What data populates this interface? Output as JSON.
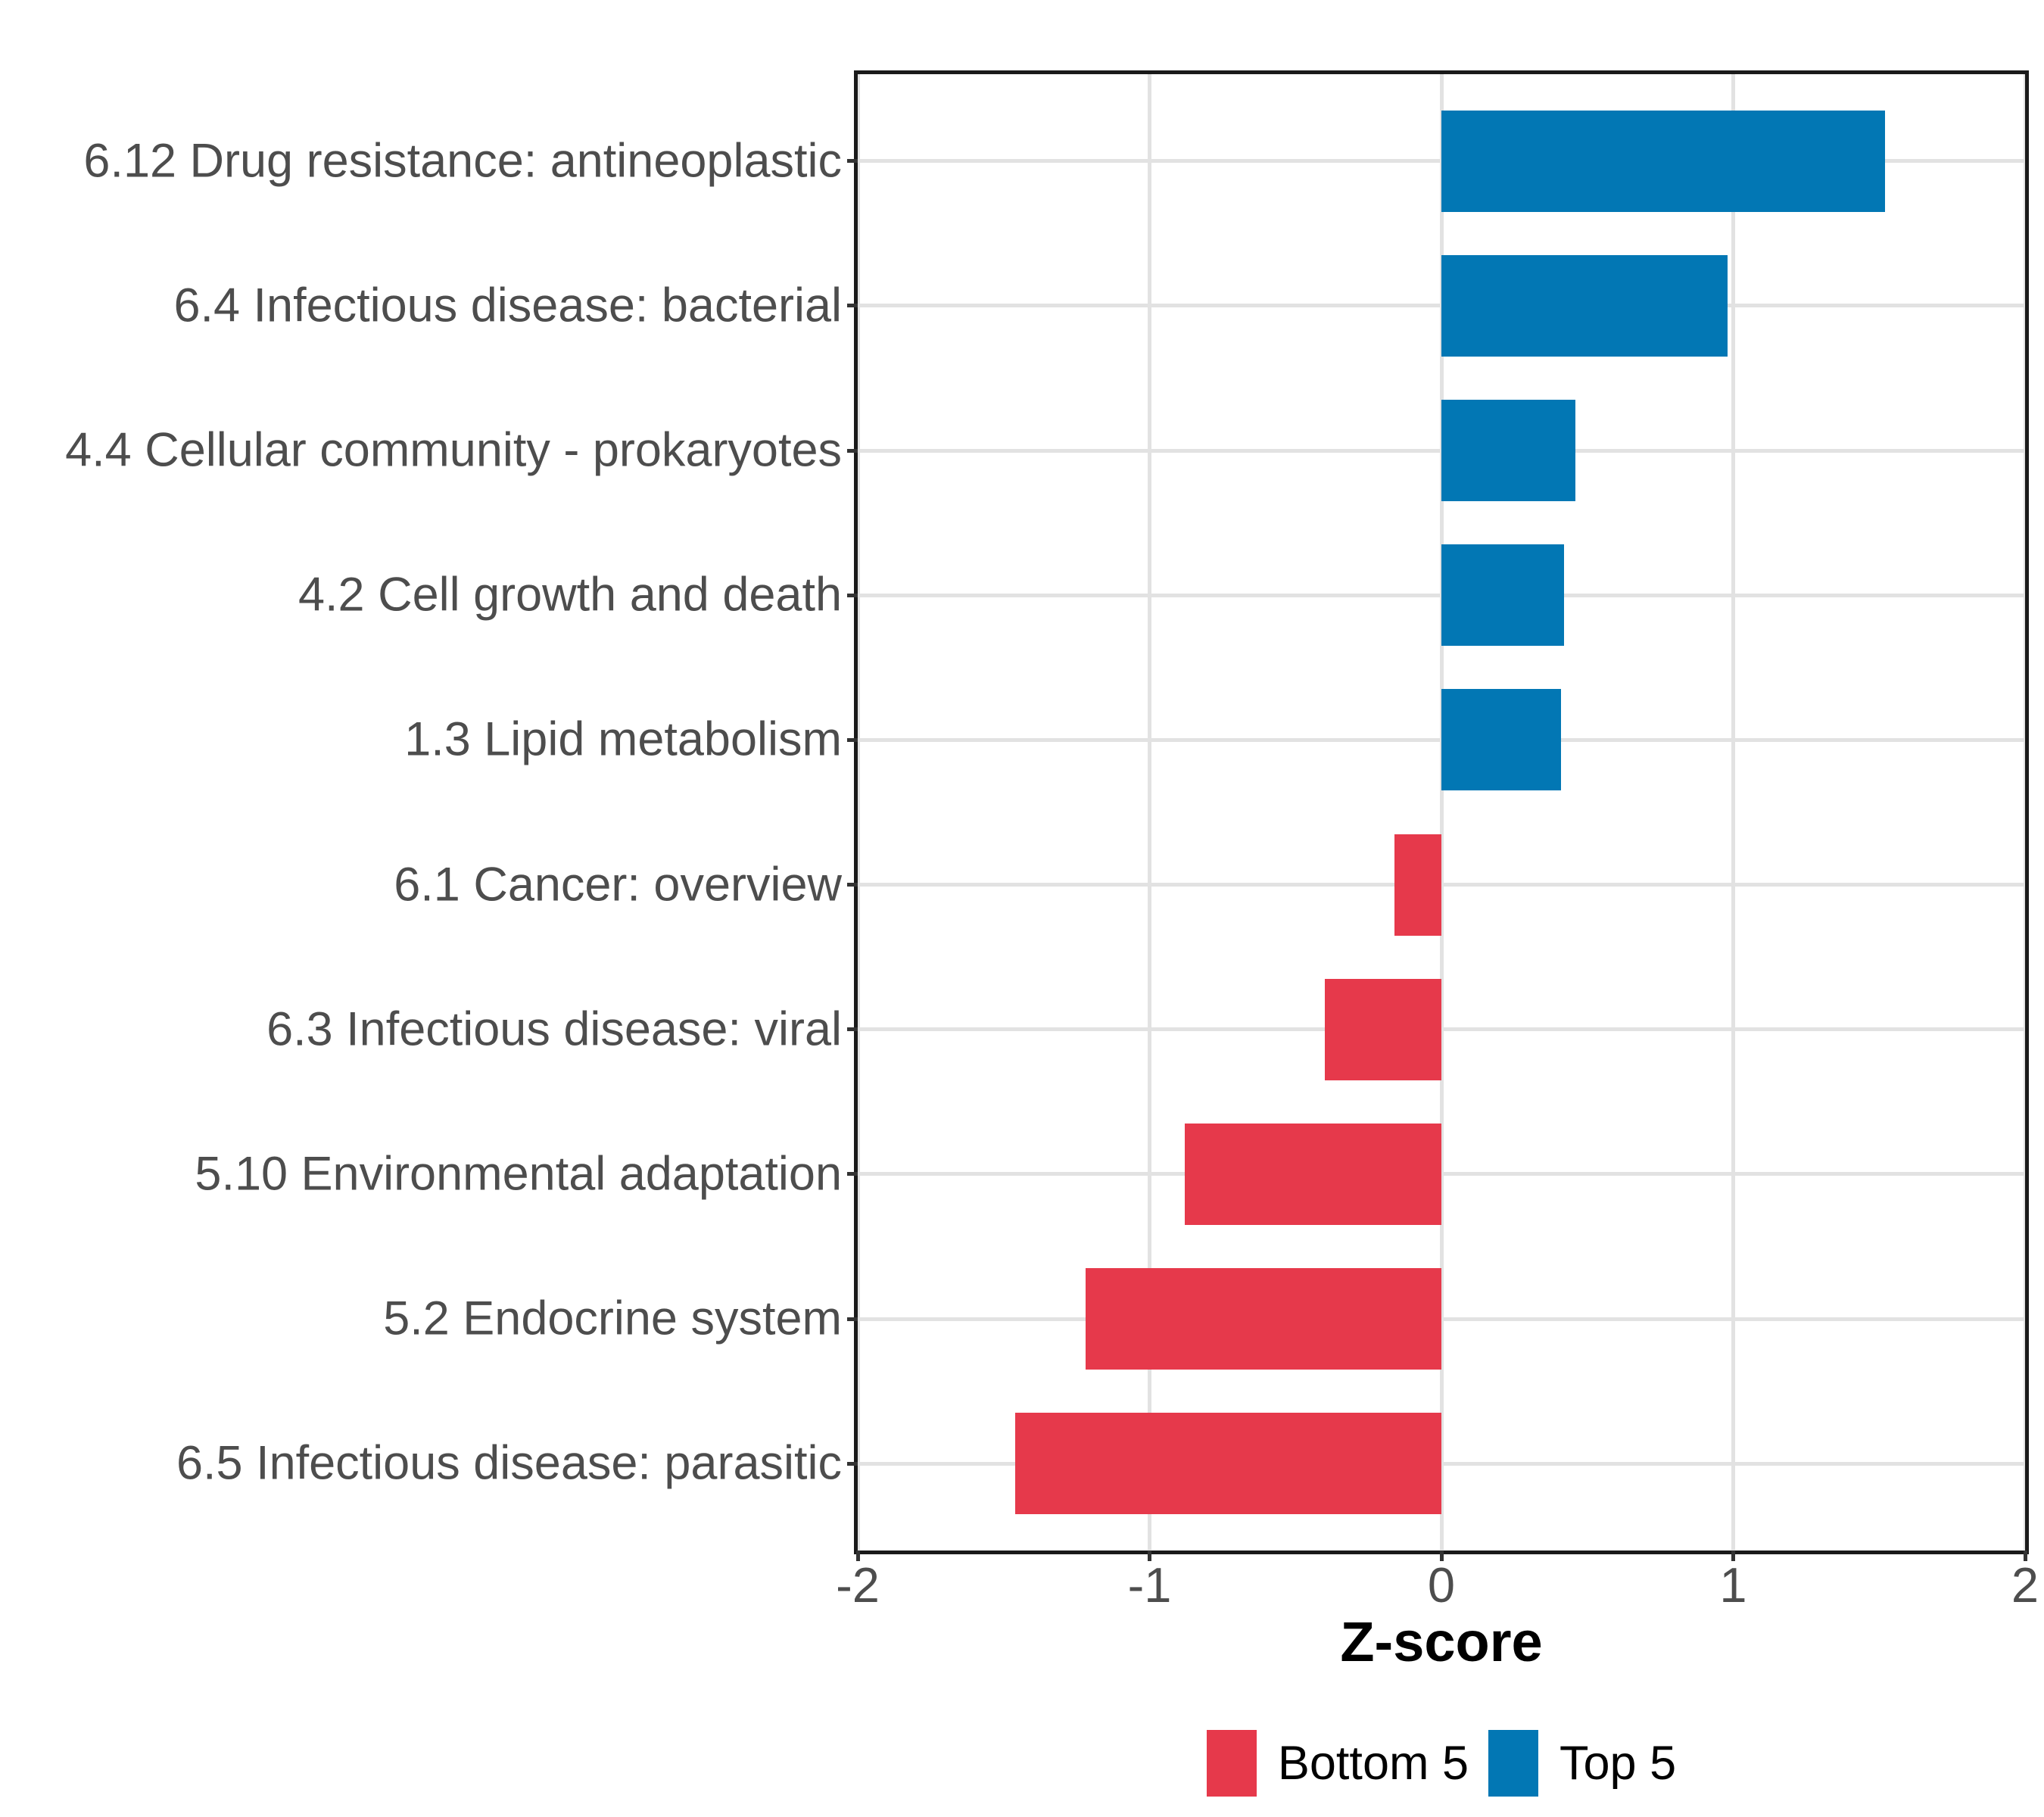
{
  "figure": {
    "background": "#ffffff"
  },
  "chart_data": {
    "type": "bar",
    "orientation": "horizontal",
    "title": "",
    "xlabel": "Z-score",
    "ylabel": "",
    "xlim": [
      -2,
      2
    ],
    "x_ticks": [
      "-2",
      "-1",
      "0",
      "1",
      "2"
    ],
    "grid": true,
    "legend_position": "bottom",
    "categories": [
      "6.12 Drug resistance: antineoplastic",
      "6.4 Infectious disease: bacterial",
      "4.4 Cellular community - prokaryotes",
      "4.2 Cell growth and death",
      "1.3 Lipid metabolism",
      "6.1 Cancer: overview",
      "6.3 Infectious disease: viral",
      "5.10 Environmental adaptation",
      "5.2 Endocrine system",
      "6.5 Infectious disease: parasitic"
    ],
    "values": [
      1.52,
      0.98,
      0.46,
      0.42,
      0.41,
      -0.16,
      -0.4,
      -0.88,
      -1.22,
      -1.46
    ],
    "groups": [
      "Top 5",
      "Top 5",
      "Top 5",
      "Top 5",
      "Top 5",
      "Bottom 5",
      "Bottom 5",
      "Bottom 5",
      "Bottom 5",
      "Bottom 5"
    ],
    "legend": [
      {
        "label": "Bottom 5",
        "color": "#e6394b"
      },
      {
        "label": "Top 5",
        "color": "#0277b4"
      }
    ]
  }
}
